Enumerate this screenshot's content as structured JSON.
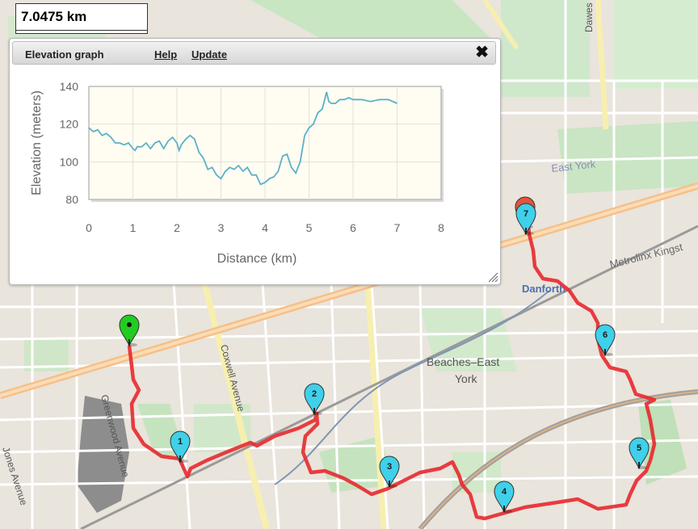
{
  "distance": {
    "value": "7.0475 km"
  },
  "panel": {
    "title": "Elevation graph",
    "help_label": "Help",
    "update_label": "Update",
    "close_icon": "close-icon"
  },
  "chart_data": {
    "type": "line",
    "xlabel": "Distance (km)",
    "ylabel": "Elevation (meters)",
    "xlim": [
      0,
      8
    ],
    "ylim": [
      80,
      140
    ],
    "x_ticks": [
      0,
      1,
      2,
      3,
      4,
      5,
      6,
      7,
      8
    ],
    "y_ticks": [
      80,
      100,
      120,
      140
    ],
    "grid": true,
    "line_color": "#5bb1c9",
    "series": [
      {
        "x": [
          0,
          0.1,
          0.2,
          0.3,
          0.4,
          0.5,
          0.6,
          0.7,
          0.8,
          0.9,
          1.0,
          1.05,
          1.1,
          1.2,
          1.3,
          1.4,
          1.5,
          1.6,
          1.7,
          1.8,
          1.9,
          2.0,
          2.05,
          2.1,
          2.2,
          2.3,
          2.4,
          2.5,
          2.6,
          2.7,
          2.8,
          2.9,
          3.0,
          3.1,
          3.2,
          3.3,
          3.4,
          3.5,
          3.6,
          3.7,
          3.8,
          3.9,
          4.0,
          4.1,
          4.2,
          4.3,
          4.4,
          4.5,
          4.6,
          4.7,
          4.8,
          4.9,
          5.0,
          5.1,
          5.2,
          5.3,
          5.4,
          5.45,
          5.5,
          5.6,
          5.7,
          5.8,
          5.9,
          6.0,
          6.2,
          6.4,
          6.6,
          6.8,
          7.0
        ],
        "y": [
          118,
          116,
          117,
          114,
          115,
          113,
          110,
          110,
          109,
          110,
          107,
          106,
          108,
          108,
          110,
          107,
          110,
          111,
          107,
          111,
          113,
          110,
          106,
          109,
          112,
          114,
          112,
          105,
          102,
          96,
          97,
          93,
          91,
          95,
          97,
          96,
          98,
          95,
          97,
          93,
          93,
          88,
          89,
          91,
          92,
          95,
          103,
          104,
          97,
          94,
          100,
          114,
          118,
          120,
          126,
          128,
          137,
          132,
          131,
          131,
          133,
          133,
          134,
          133,
          133,
          132,
          133,
          133,
          131
        ]
      }
    ]
  },
  "map": {
    "labels": {
      "east_york": "East York",
      "danforth": "Danforth",
      "metrolinx": "Metrolinx Kingst",
      "beaches_1": "Beaches–East",
      "beaches_2": "York",
      "coxwell": "Coxwell Avenue",
      "greenwood": "Greenwood Avenue",
      "jones": "Jones Avenue",
      "dawes": "Dawes"
    },
    "markers": [
      {
        "label": "1",
        "color": "#3fd0ea"
      },
      {
        "label": "2",
        "color": "#3fd0ea"
      },
      {
        "label": "3",
        "color": "#3fd0ea"
      },
      {
        "label": "4",
        "color": "#3fd0ea"
      },
      {
        "label": "5",
        "color": "#3fd0ea"
      },
      {
        "label": "6",
        "color": "#3fd0ea"
      },
      {
        "label": "7",
        "color": "#3fd0ea"
      }
    ],
    "start_marker": {
      "color": "#22cc22",
      "icon": "start-pin-icon"
    },
    "end_marker": {
      "color": "#e5553a",
      "icon": "end-pin-icon"
    },
    "route_color": "#e8282d"
  }
}
